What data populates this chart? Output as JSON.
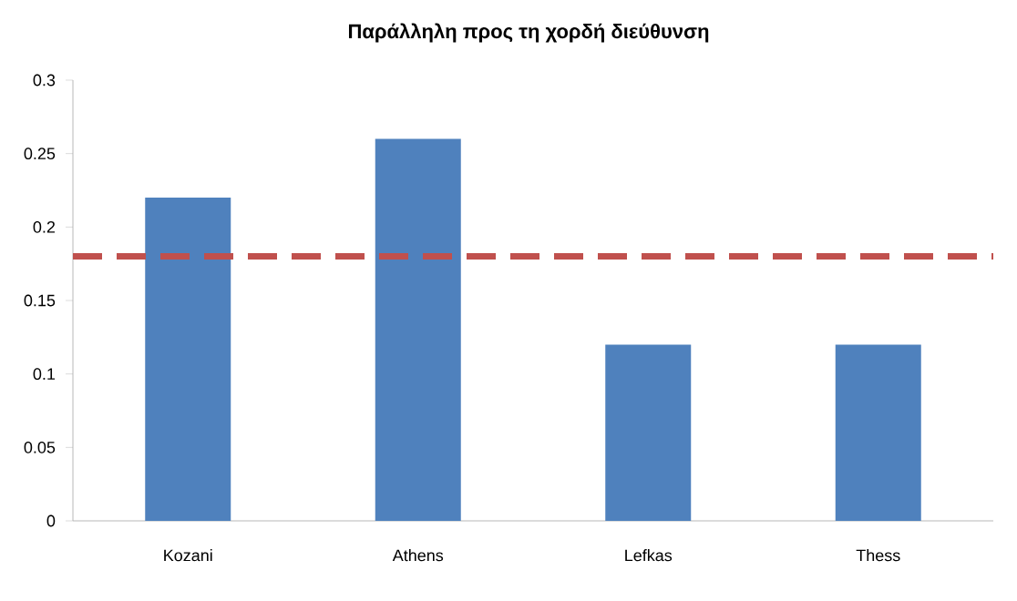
{
  "chart_data": {
    "type": "bar",
    "title": "Παράλληλη προς τη χορδή διεύθυνση",
    "categories": [
      "Kozani",
      "Athens",
      "Lefkas",
      "Thess"
    ],
    "values": [
      0.22,
      0.26,
      0.12,
      0.12
    ],
    "color": "#4f81bd",
    "ylim": [
      0,
      0.3
    ],
    "yticks": [
      0,
      0.05,
      0.1,
      0.15,
      0.2,
      0.25,
      0.3
    ],
    "ref_lines": [
      {
        "axis": "y",
        "value": 0.18,
        "color": "#c0504d",
        "line_style": "dashed"
      }
    ],
    "grid": false
  }
}
